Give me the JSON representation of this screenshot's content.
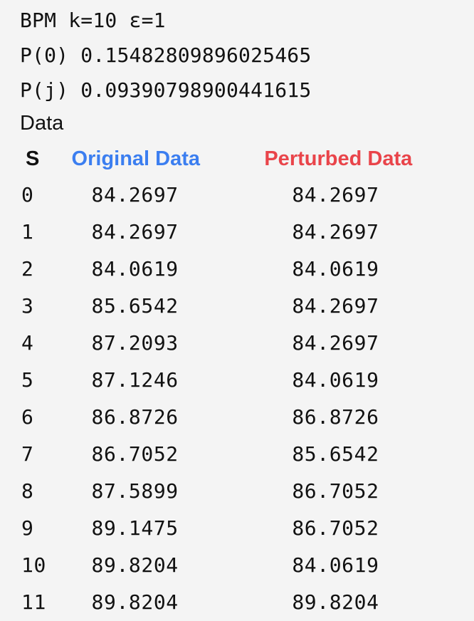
{
  "header": {
    "title": "BPM k=10 ε=1",
    "p0": "P(0) 0.1548280989602546​5",
    "pj": "P(j) 0.0939079890044161​5",
    "data_label": "Data"
  },
  "table": {
    "columns": {
      "s": "S",
      "original": "Original Data",
      "perturbed": "Perturbed Data"
    },
    "colors": {
      "original": "#3b7ef0",
      "perturbed": "#e9444a"
    },
    "rows": [
      {
        "s": "0",
        "original": "84.2697",
        "perturbed": "84.2697"
      },
      {
        "s": "1",
        "original": "84.2697",
        "perturbed": "84.2697"
      },
      {
        "s": "2",
        "original": "84.0619",
        "perturbed": "84.0619"
      },
      {
        "s": "3",
        "original": "85.6542",
        "perturbed": "84.2697"
      },
      {
        "s": "4",
        "original": "87.2093",
        "perturbed": "84.2697"
      },
      {
        "s": "5",
        "original": "87.1246",
        "perturbed": "84.0619"
      },
      {
        "s": "6",
        "original": "86.8726",
        "perturbed": "86.8726"
      },
      {
        "s": "7",
        "original": "86.7052",
        "perturbed": "85.6542"
      },
      {
        "s": "8",
        "original": "87.5899",
        "perturbed": "86.7052"
      },
      {
        "s": "9",
        "original": "89.1475",
        "perturbed": "86.7052"
      },
      {
        "s": "10",
        "original": "89.8204",
        "perturbed": "84.0619"
      },
      {
        "s": "11",
        "original": "89.8204",
        "perturbed": "89.8204"
      }
    ]
  }
}
